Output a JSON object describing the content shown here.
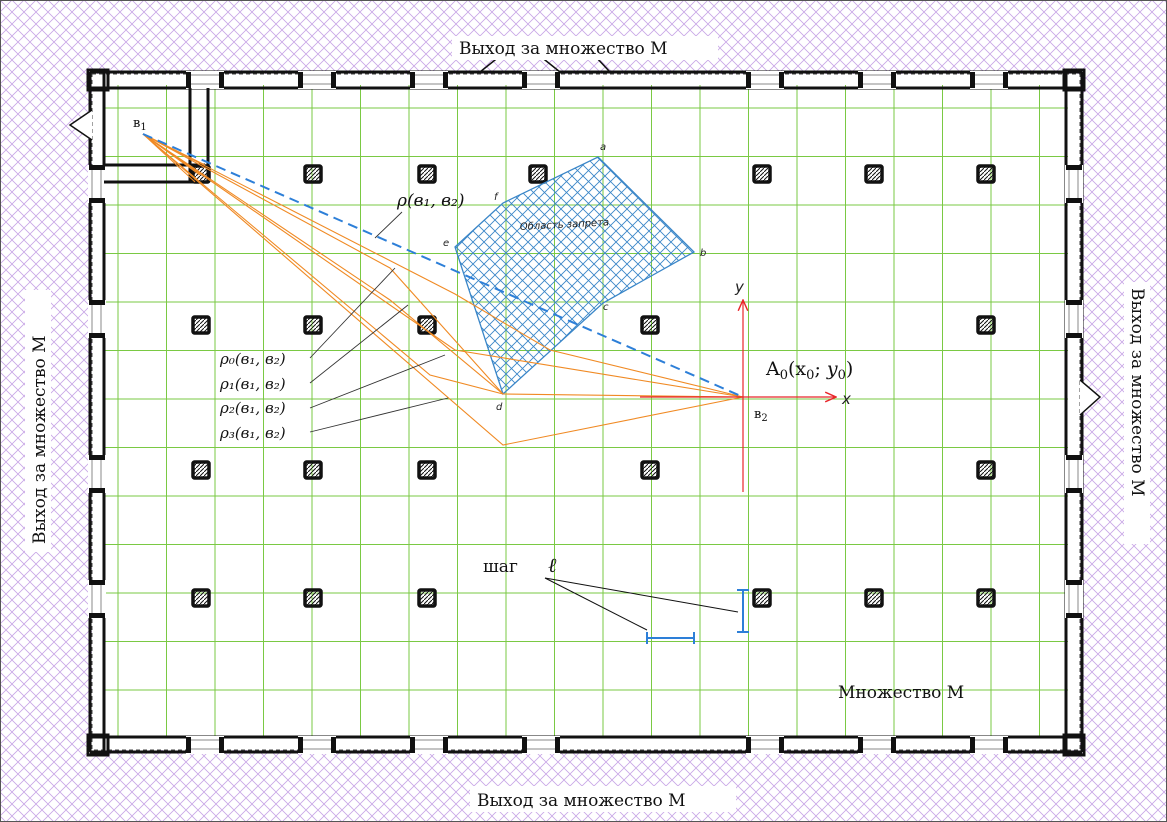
{
  "exit_labels": {
    "top": "Выход за множество М",
    "bottom": "Выход за множество М",
    "left": "Выход за множество М",
    "right": "Выход за множество М"
  },
  "set_label": "Множество М",
  "forbidden_zone_label": "Область запрета",
  "vertex_labels": {
    "a": "a",
    "b": "b",
    "c": "c",
    "d": "d",
    "e": "e",
    "f": "f"
  },
  "point_b1": {
    "base": "в",
    "sub": "1"
  },
  "point_b2": {
    "base": "в",
    "sub": "2"
  },
  "origin_label": {
    "a": "A",
    "sub0": "0",
    "open": "(x",
    "subx": "0",
    "sep": "; ",
    "y": "y",
    "suby": "0",
    "close": ")"
  },
  "axis_x": "x",
  "axis_y": "y",
  "rho_main": "ρ(в₁, в₂)",
  "rho_list": [
    "ρ₀(в₁, в₂)",
    "ρ₁(в₁, в₂)",
    "ρ₂(в₁, в₂)",
    "ρ₃(в₁, в₂)"
  ],
  "step_label": "шаг",
  "step_symbol": "ℓ",
  "colors": {
    "grid": "#7ac943",
    "hatch": "#c8a6e6",
    "forbidden": "#3a86c8",
    "route": "#f08a24",
    "direct": "#2d7fd8",
    "axis": "#e8262a",
    "wall": "#111111"
  }
}
